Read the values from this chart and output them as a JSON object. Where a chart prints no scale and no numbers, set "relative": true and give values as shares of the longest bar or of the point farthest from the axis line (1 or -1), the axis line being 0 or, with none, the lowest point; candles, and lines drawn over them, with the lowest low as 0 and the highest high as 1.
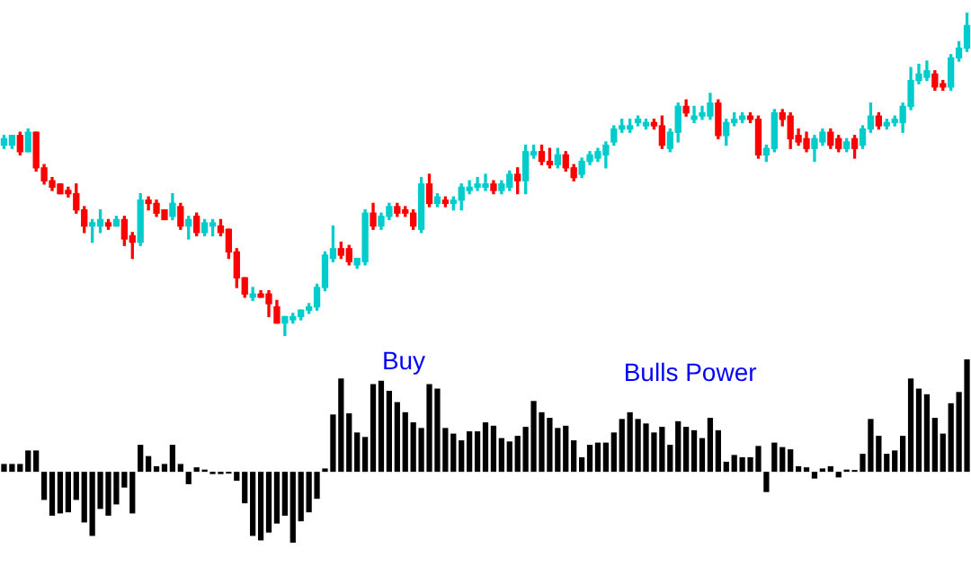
{
  "chart_data": [
    {
      "type": "candlestick",
      "relative": true,
      "colors": [
        "#00cccc",
        "#00cccc",
        "#ff0000",
        "#00cccc",
        "#ff0000",
        "#ff0000",
        "#ff0000",
        "#ff0000",
        "#ff0000",
        "#ff0000",
        "#ff0000",
        "#00cccc",
        "#00cccc",
        "#ff0000",
        "#00cccc",
        "#ff0000",
        "#ff0000",
        "#00cccc",
        "#ff0000",
        "#ff0000",
        "#ff0000",
        "#00cccc",
        "#ff0000",
        "#00cccc",
        "#ff0000",
        "#00cccc",
        "#00cccc",
        "#ff0000",
        "#ff0000",
        "#ff0000",
        "#ff0000",
        "#00cccc",
        "#ff0000",
        "#ff0000",
        "#ff0000",
        "#00cccc",
        "#00cccc",
        "#00cccc",
        "#00cccc",
        "#00cccc",
        "#00cccc",
        "#00cccc",
        "#ff0000",
        "#ff0000",
        "#00cccc",
        "#00cccc",
        "#ff0000",
        "#00cccc",
        "#00cccc",
        "#ff0000",
        "#ff0000",
        "#ff0000",
        "#00cccc",
        "#ff0000",
        "#00cccc",
        "#ff0000",
        "#00cccc",
        "#00cccc",
        "#00cccc",
        "#00cccc",
        "#00cccc",
        "#ff0000",
        "#00cccc",
        "#00cccc",
        "#ff0000",
        "#00cccc",
        "#00cccc",
        "#ff0000",
        "#ff0000",
        "#00cccc",
        "#ff0000",
        "#ff0000",
        "#00cccc",
        "#00cccc",
        "#00cccc",
        "#00cccc",
        "#00cccc",
        "#00cccc",
        "#00cccc",
        "#00cccc",
        "#00cccc",
        "#ff0000",
        "#ff0000",
        "#00cccc",
        "#00cccc",
        "#ff0000",
        "#00cccc",
        "#00cccc",
        "#00cccc",
        "#ff0000",
        "#00cccc",
        "#00cccc",
        "#00cccc",
        "#ff0000",
        "#ff0000",
        "#00cccc",
        "#00cccc",
        "#ff0000",
        "#ff0000",
        "#ff0000",
        "#ff0000",
        "#00cccc",
        "#00cccc",
        "#ff0000",
        "#ff0000",
        "#00cccc",
        "#ff0000",
        "#00cccc",
        "#00cccc",
        "#ff0000",
        "#00cccc",
        "#00cccc",
        "#00cccc",
        "#00cccc",
        "#00cccc",
        "#00cccc",
        "#ff0000",
        "#ff0000",
        "#00cccc",
        "#00cccc",
        "#00cccc"
      ],
      "categories": [
        null,
        null,
        null,
        null,
        null,
        null,
        null,
        null,
        null,
        null,
        null,
        null,
        null,
        null,
        null,
        null,
        null,
        null,
        null,
        null,
        null,
        null,
        null,
        null,
        null,
        null,
        null,
        null,
        null,
        null,
        null,
        null,
        null,
        null,
        null,
        null,
        null,
        null,
        null,
        null,
        null,
        null,
        null,
        null,
        null,
        null,
        null,
        null,
        null,
        null,
        null,
        null,
        null,
        null,
        null,
        null,
        null,
        null,
        null,
        null,
        null,
        null,
        null,
        null,
        null,
        null,
        null,
        null,
        null,
        null,
        null,
        null,
        null,
        null,
        null,
        null,
        null,
        null,
        null,
        null,
        null,
        null,
        null,
        null,
        null,
        null,
        null,
        null,
        null,
        null,
        null,
        null,
        null,
        null,
        null,
        null,
        null,
        null,
        null,
        null,
        null,
        null,
        null,
        null,
        null,
        null,
        null,
        null,
        null,
        null,
        null,
        null,
        null,
        null,
        null,
        null,
        null,
        null,
        null,
        null,
        null
      ],
      "ohlc": [
        [
          0.59,
          0.62,
          0.58,
          0.61
        ],
        [
          0.59,
          0.62,
          0.58,
          0.62
        ],
        [
          0.62,
          0.63,
          0.56,
          0.57
        ],
        [
          0.57,
          0.64,
          0.57,
          0.63
        ],
        [
          0.63,
          0.63,
          0.51,
          0.52
        ],
        [
          0.52,
          0.53,
          0.47,
          0.48
        ],
        [
          0.48,
          0.49,
          0.45,
          0.46
        ],
        [
          0.47,
          0.47,
          0.44,
          0.44
        ],
        [
          0.45,
          0.46,
          0.43,
          0.44
        ],
        [
          0.44,
          0.47,
          0.38,
          0.39
        ],
        [
          0.39,
          0.4,
          0.32,
          0.34
        ],
        [
          0.34,
          0.36,
          0.29,
          0.35
        ],
        [
          0.34,
          0.39,
          0.32,
          0.36
        ],
        [
          0.35,
          0.36,
          0.33,
          0.34
        ],
        [
          0.34,
          0.37,
          0.34,
          0.36
        ],
        [
          0.36,
          0.37,
          0.28,
          0.3
        ],
        [
          0.31,
          0.32,
          0.24,
          0.29
        ],
        [
          0.29,
          0.44,
          0.28,
          0.42
        ],
        [
          0.42,
          0.43,
          0.39,
          0.41
        ],
        [
          0.41,
          0.42,
          0.37,
          0.38
        ],
        [
          0.39,
          0.39,
          0.36,
          0.36
        ],
        [
          0.37,
          0.44,
          0.36,
          0.41
        ],
        [
          0.4,
          0.41,
          0.33,
          0.34
        ],
        [
          0.34,
          0.37,
          0.3,
          0.36
        ],
        [
          0.37,
          0.38,
          0.31,
          0.32
        ],
        [
          0.32,
          0.36,
          0.31,
          0.35
        ],
        [
          0.34,
          0.36,
          0.31,
          0.35
        ],
        [
          0.34,
          0.36,
          0.31,
          0.32
        ],
        [
          0.33,
          0.33,
          0.24,
          0.26
        ],
        [
          0.26,
          0.27,
          0.15,
          0.18
        ],
        [
          0.18,
          0.18,
          0.12,
          0.13
        ],
        [
          0.12,
          0.15,
          0.11,
          0.13
        ],
        [
          0.13,
          0.14,
          0.12,
          0.12
        ],
        [
          0.13,
          0.14,
          0.06,
          0.1
        ],
        [
          0.09,
          0.11,
          0.04,
          0.04
        ],
        [
          0.04,
          0.06,
          0,
          0.06
        ],
        [
          0.05,
          0.07,
          0.04,
          0.06
        ],
        [
          0.06,
          0.08,
          0.05,
          0.08
        ],
        [
          0.08,
          0.1,
          0.07,
          0.09
        ],
        [
          0.09,
          0.16,
          0.08,
          0.15
        ],
        [
          0.15,
          0.26,
          0.14,
          0.25
        ],
        [
          0.24,
          0.34,
          0.23,
          0.27
        ],
        [
          0.27,
          0.29,
          0.24,
          0.25
        ],
        [
          0.27,
          0.28,
          0.22,
          0.23
        ],
        [
          0.22,
          0.24,
          0.21,
          0.24
        ],
        [
          0.23,
          0.39,
          0.22,
          0.38
        ],
        [
          0.38,
          0.41,
          0.33,
          0.34
        ],
        [
          0.34,
          0.38,
          0.33,
          0.37
        ],
        [
          0.37,
          0.41,
          0.36,
          0.4
        ],
        [
          0.4,
          0.41,
          0.37,
          0.38
        ],
        [
          0.39,
          0.4,
          0.37,
          0.38
        ],
        [
          0.38,
          0.39,
          0.33,
          0.34
        ],
        [
          0.33,
          0.49,
          0.32,
          0.47
        ],
        [
          0.47,
          0.5,
          0.4,
          0.41
        ],
        [
          0.41,
          0.44,
          0.4,
          0.43
        ],
        [
          0.42,
          0.43,
          0.4,
          0.41
        ],
        [
          0.41,
          0.43,
          0.39,
          0.42
        ],
        [
          0.42,
          0.47,
          0.39,
          0.46
        ],
        [
          0.45,
          0.48,
          0.44,
          0.46
        ],
        [
          0.46,
          0.49,
          0.45,
          0.47
        ],
        [
          0.46,
          0.5,
          0.45,
          0.47
        ],
        [
          0.47,
          0.48,
          0.44,
          0.45
        ],
        [
          0.45,
          0.48,
          0.44,
          0.47
        ],
        [
          0.46,
          0.51,
          0.45,
          0.5
        ],
        [
          0.5,
          0.52,
          0.44,
          0.48
        ],
        [
          0.48,
          0.59,
          0.44,
          0.57
        ],
        [
          0.56,
          0.59,
          0.55,
          0.57
        ],
        [
          0.57,
          0.59,
          0.53,
          0.54
        ],
        [
          0.54,
          0.58,
          0.52,
          0.53
        ],
        [
          0.53,
          0.58,
          0.52,
          0.56
        ],
        [
          0.56,
          0.57,
          0.51,
          0.52
        ],
        [
          0.52,
          0.53,
          0.48,
          0.49
        ],
        [
          0.5,
          0.55,
          0.49,
          0.54
        ],
        [
          0.54,
          0.57,
          0.53,
          0.56
        ],
        [
          0.55,
          0.58,
          0.54,
          0.57
        ],
        [
          0.56,
          0.6,
          0.52,
          0.59
        ],
        [
          0.6,
          0.65,
          0.59,
          0.64
        ],
        [
          0.64,
          0.67,
          0.63,
          0.65
        ],
        [
          0.64,
          0.67,
          0.63,
          0.65
        ],
        [
          0.66,
          0.68,
          0.65,
          0.67
        ],
        [
          0.65,
          0.67,
          0.64,
          0.66
        ],
        [
          0.66,
          0.67,
          0.64,
          0.65
        ],
        [
          0.65,
          0.68,
          0.58,
          0.59
        ],
        [
          0.58,
          0.64,
          0.57,
          0.63
        ],
        [
          0.63,
          0.72,
          0.6,
          0.71
        ],
        [
          0.71,
          0.73,
          0.68,
          0.69
        ],
        [
          0.67,
          0.71,
          0.66,
          0.68
        ],
        [
          0.68,
          0.71,
          0.67,
          0.69
        ],
        [
          0.68,
          0.75,
          0.67,
          0.72
        ],
        [
          0.72,
          0.73,
          0.61,
          0.62
        ],
        [
          0.62,
          0.67,
          0.59,
          0.66
        ],
        [
          0.66,
          0.69,
          0.65,
          0.67
        ],
        [
          0.67,
          0.69,
          0.66,
          0.68
        ],
        [
          0.68,
          0.69,
          0.66,
          0.67
        ],
        [
          0.67,
          0.68,
          0.55,
          0.56
        ],
        [
          0.56,
          0.59,
          0.54,
          0.58
        ],
        [
          0.58,
          0.7,
          0.57,
          0.69
        ],
        [
          0.69,
          0.7,
          0.65,
          0.67
        ],
        [
          0.68,
          0.69,
          0.58,
          0.61
        ],
        [
          0.62,
          0.64,
          0.59,
          0.6
        ],
        [
          0.61,
          0.63,
          0.57,
          0.58
        ],
        [
          0.58,
          0.62,
          0.54,
          0.61
        ],
        [
          0.6,
          0.64,
          0.59,
          0.63
        ],
        [
          0.63,
          0.64,
          0.58,
          0.59
        ],
        [
          0.61,
          0.62,
          0.57,
          0.58
        ],
        [
          0.58,
          0.61,
          0.57,
          0.6
        ],
        [
          0.61,
          0.62,
          0.55,
          0.58
        ],
        [
          0.59,
          0.65,
          0.58,
          0.64
        ],
        [
          0.64,
          0.72,
          0.63,
          0.68
        ],
        [
          0.68,
          0.69,
          0.64,
          0.65
        ],
        [
          0.65,
          0.67,
          0.64,
          0.66
        ],
        [
          0.66,
          0.68,
          0.65,
          0.67
        ],
        [
          0.66,
          0.72,
          0.63,
          0.71
        ],
        [
          0.71,
          0.83,
          0.7,
          0.79
        ],
        [
          0.79,
          0.84,
          0.78,
          0.81
        ],
        [
          0.8,
          0.85,
          0.79,
          0.82
        ],
        [
          0.81,
          0.82,
          0.76,
          0.77
        ],
        [
          0.78,
          0.79,
          0.76,
          0.77
        ],
        [
          0.77,
          0.87,
          0.76,
          0.86
        ],
        [
          0.86,
          0.91,
          0.85,
          0.89
        ],
        [
          0.89,
          1,
          0.88,
          0.96
        ]
      ]
    },
    {
      "type": "bar",
      "relative": true,
      "color": "#000000",
      "annotations": [
        "Buy",
        "Bulls Power"
      ],
      "categories": [
        null,
        null,
        null,
        null,
        null,
        null,
        null,
        null,
        null,
        null,
        null,
        null,
        null,
        null,
        null,
        null,
        null,
        null,
        null,
        null,
        null,
        null,
        null,
        null,
        null,
        null,
        null,
        null,
        null,
        null,
        null,
        null,
        null,
        null,
        null,
        null,
        null,
        null,
        null,
        null,
        null,
        null,
        null,
        null,
        null,
        null,
        null,
        null,
        null,
        null,
        null,
        null,
        null,
        null,
        null,
        null,
        null,
        null,
        null,
        null,
        null,
        null,
        null,
        null,
        null,
        null,
        null,
        null,
        null,
        null,
        null,
        null,
        null,
        null,
        null,
        null,
        null,
        null,
        null,
        null,
        null,
        null,
        null,
        null,
        null,
        null,
        null,
        null,
        null,
        null,
        null,
        null,
        null,
        null,
        null,
        null,
        null,
        null,
        null,
        null,
        null,
        null,
        null,
        null,
        null,
        null,
        null,
        null,
        null,
        null,
        null,
        null,
        null,
        null,
        null,
        null,
        null,
        null,
        null,
        null,
        null
      ],
      "values": [
        0.07,
        0.07,
        0.07,
        0.19,
        0.19,
        -0.25,
        -0.39,
        -0.37,
        -0.36,
        -0.25,
        -0.45,
        -0.57,
        -0.33,
        -0.39,
        -0.29,
        -0.14,
        -0.37,
        0.24,
        0.14,
        0.05,
        0.07,
        0.24,
        0.07,
        -0.11,
        0.04,
        0.02,
        -0.02,
        -0.02,
        -0.01,
        -0.08,
        -0.28,
        -0.57,
        -0.61,
        -0.54,
        -0.46,
        -0.39,
        -0.63,
        -0.44,
        -0.36,
        -0.24,
        0.03,
        0.51,
        0.83,
        0.52,
        0.35,
        0.31,
        0.78,
        0.81,
        0.72,
        0.62,
        0.53,
        0.44,
        0.39,
        0.78,
        0.74,
        0.39,
        0.34,
        0.28,
        0.36,
        0.36,
        0.44,
        0.41,
        0.3,
        0.27,
        0.32,
        0.4,
        0.63,
        0.53,
        0.48,
        0.39,
        0.41,
        0.28,
        0.13,
        0.24,
        0.26,
        0.26,
        0.35,
        0.47,
        0.53,
        0.47,
        0.43,
        0.35,
        0.4,
        0.24,
        0.45,
        0.4,
        0.37,
        0.3,
        0.48,
        0.37,
        0.09,
        0.15,
        0.13,
        0.13,
        0.23,
        -0.18,
        0.26,
        0.22,
        0.2,
        0.05,
        0.04,
        -0.06,
        0.03,
        0.05,
        -0.05,
        0.02,
        0.01,
        0.16,
        0.47,
        0.32,
        0.16,
        0.19,
        0.32,
        0.83,
        0.74,
        0.69,
        0.48,
        0.34,
        0.61,
        0.71,
        1
      ]
    }
  ]
}
